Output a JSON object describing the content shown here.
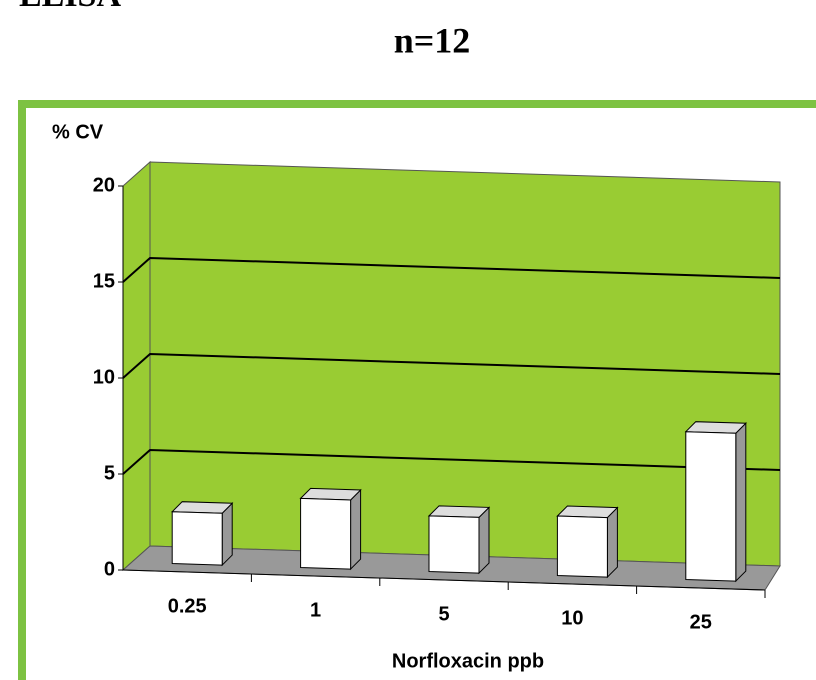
{
  "chart_data": {
    "type": "bar3d",
    "title": "ELISA",
    "subtitle": "n=12",
    "y_label": "% CV",
    "x_label": "Norfloxacin ppb",
    "categories": [
      "0.25",
      "1",
      "5",
      "10",
      "25"
    ],
    "values": [
      2.7,
      3.6,
      2.9,
      3.1,
      7.7
    ],
    "color": "#ffffff",
    "wall_color": "#99cc33",
    "floor_color": "#999999",
    "ylim": [
      0,
      20
    ],
    "yticks": [
      0,
      5,
      10,
      15,
      20
    ],
    "grid": true
  }
}
